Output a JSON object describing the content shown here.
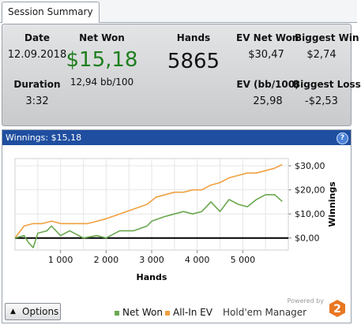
{
  "tab": {
    "label": "Session Summary"
  },
  "summary": {
    "date_label": "Date",
    "date_value": "12.09.2018",
    "duration_label": "Duration",
    "duration_value": "3:32",
    "net_won_label": "Net Won",
    "net_won_value": "$15,18",
    "bb_per_100": "12,94 bb/100",
    "hands_label": "Hands",
    "hands_value": "5865",
    "ev_net_won_label": "EV Net Won",
    "ev_net_won_value": "$30,47",
    "ev_bb_label": "EV (bb/100)",
    "ev_bb_value": "25,98",
    "biggest_win_label": "Biggest Win",
    "biggest_win_value": "$2,74",
    "biggest_loss_label": "Biggest Loss",
    "biggest_loss_value": "-$2,53"
  },
  "chart_panel": {
    "header": "Winnings: $15,18",
    "help_glyph": "?"
  },
  "chart_data": {
    "type": "line",
    "xlabel": "Hands",
    "ylabel": "Winnings",
    "xlim": [
      0,
      6000
    ],
    "ylim": [
      -5,
      33
    ],
    "x_ticks": [
      1000,
      2000,
      3000,
      4000,
      5000
    ],
    "x_tick_labels": [
      "1 000",
      "2 000",
      "3 000",
      "4 000",
      "5 000"
    ],
    "y_ticks": [
      0,
      10,
      20,
      30
    ],
    "y_tick_labels": [
      "$0,00",
      "$10,00",
      "$20,00",
      "$30,00"
    ],
    "series": [
      {
        "name": "Net Won",
        "color": "#6aa84f",
        "x": [
          0,
          200,
          300,
          400,
          500,
          700,
          800,
          1000,
          1200,
          1500,
          1800,
          2000,
          2300,
          2600,
          2900,
          3000,
          3300,
          3500,
          3700,
          3900,
          4100,
          4300,
          4500,
          4700,
          4900,
          5100,
          5300,
          5500,
          5700,
          5865
        ],
        "y": [
          0,
          1,
          -2,
          -4,
          2,
          3,
          5,
          1,
          3,
          0,
          1,
          0,
          3,
          3,
          5,
          7,
          9,
          10,
          11,
          10,
          11,
          15,
          11,
          16,
          14,
          13,
          16,
          18,
          18,
          15.2
        ]
      },
      {
        "name": "All-In EV",
        "color": "#f0a040",
        "x": [
          0,
          200,
          400,
          600,
          800,
          1000,
          1300,
          1600,
          1800,
          2000,
          2300,
          2600,
          2900,
          3100,
          3300,
          3500,
          3700,
          3900,
          4100,
          4300,
          4500,
          4700,
          4900,
          5100,
          5300,
          5500,
          5700,
          5865
        ],
        "y": [
          0,
          5,
          6,
          6,
          7,
          6,
          6,
          6,
          7,
          8,
          10,
          12,
          14,
          17,
          18,
          19,
          19,
          20,
          20,
          22,
          23,
          25,
          26,
          27,
          27,
          28,
          29,
          30.5
        ]
      }
    ],
    "grid": true,
    "legend_position": "bottom"
  },
  "footer": {
    "options_label": "Options",
    "options_arrow": "▲",
    "legend_net_won": "Net Won",
    "legend_all_in_ev": "All-In EV",
    "powered_by": "Powered by",
    "brand_name": "Hold'em Manager",
    "brand_number": "2",
    "net_won_color": "#6aa84f",
    "all_in_ev_color": "#f0a040"
  }
}
